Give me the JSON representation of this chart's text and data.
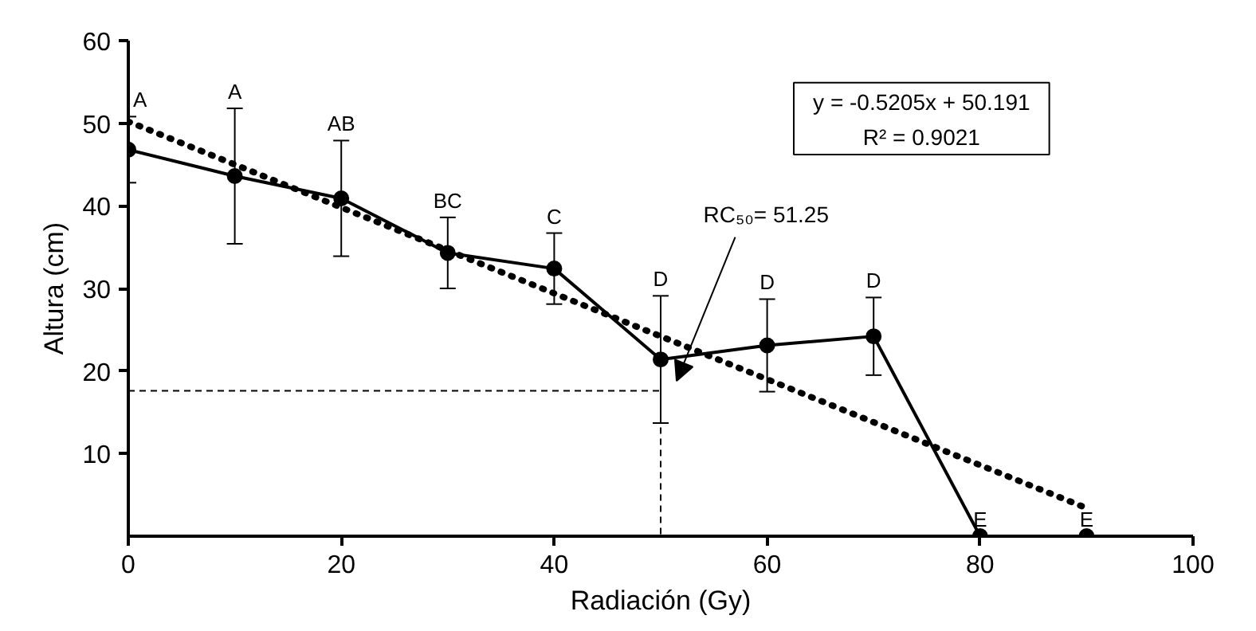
{
  "chart_data": {
    "type": "line",
    "xlabel": "Radiación (Gy)",
    "ylabel": "Altura (cm)",
    "xlim": [
      0,
      100
    ],
    "xticks": [
      0,
      20,
      40,
      60,
      80,
      100
    ],
    "ylim": [
      0,
      60
    ],
    "yticks": [
      10,
      20,
      30,
      40,
      50,
      60
    ],
    "grid": false,
    "series": [
      {
        "color": "#000000",
        "marker": "circle",
        "line_style": "solid",
        "x": [
          0,
          10,
          20,
          30,
          40,
          50,
          60,
          70,
          80,
          90
        ],
        "values": [
          46.8,
          43.6,
          40.9,
          34.3,
          32.4,
          21.4,
          23.1,
          24.2,
          0,
          0
        ],
        "errors": [
          4,
          8.2,
          7,
          4.3,
          4.3,
          7.7,
          5.6,
          4.7,
          null,
          null
        ],
        "value_labels": [
          "A",
          "A",
          "AB",
          "BC",
          "C",
          "D",
          "D",
          "D",
          "E",
          "E"
        ]
      },
      {
        "color": "#000000",
        "marker": "none",
        "line_style": "dotted",
        "x": [
          0,
          90
        ],
        "values": [
          50.2,
          3.4
        ]
      },
      {
        "color": "#000000",
        "marker": "none",
        "line_style": "dashed",
        "x": [
          0,
          50,
          50
        ],
        "values": [
          17.6,
          17.6,
          0
        ]
      }
    ],
    "annotations": [
      "y = -0.5205x + 50.191",
      "R² = 0.9021",
      "RC₅₀= 51.25"
    ]
  }
}
